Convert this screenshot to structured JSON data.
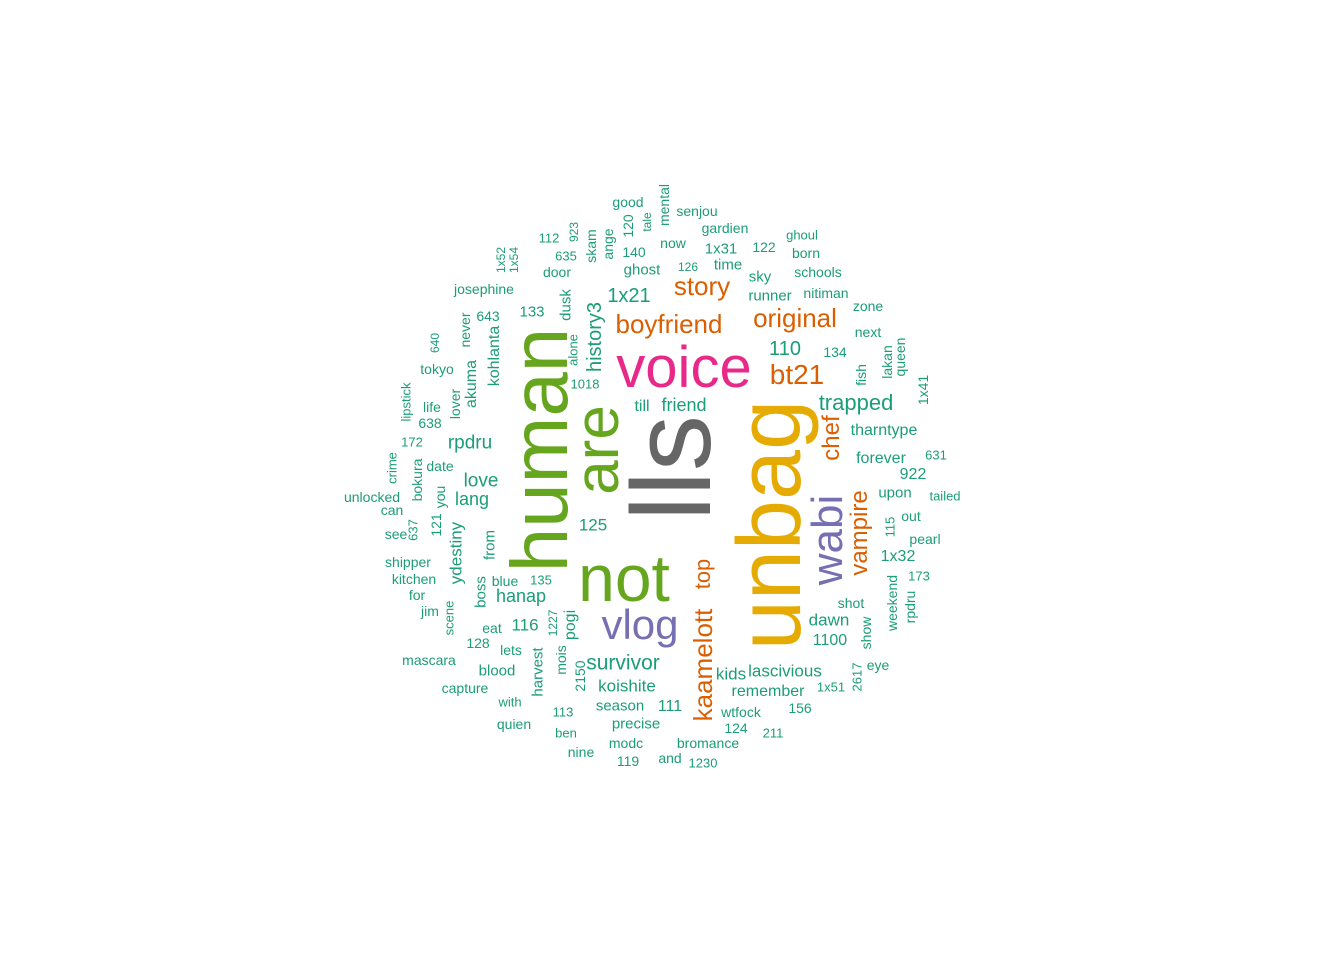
{
  "palette": {
    "gray": "#666666",
    "olive": "#66a61e",
    "gold": "#e6ab02",
    "magenta": "#e7298a",
    "purple": "#7570b3",
    "orange": "#d95f02",
    "teal": "#1b9e77"
  },
  "words": [
    {
      "text": "lls"
    },
    {
      "text": "unbag"
    },
    {
      "text": "human"
    },
    {
      "text": "not"
    },
    {
      "text": "are"
    },
    {
      "text": "voice"
    },
    {
      "text": "vlog"
    },
    {
      "text": "wabi"
    },
    {
      "text": "boyfriend"
    },
    {
      "text": "story"
    },
    {
      "text": "original"
    },
    {
      "text": "bt21"
    },
    {
      "text": "kaamelott"
    },
    {
      "text": "top"
    },
    {
      "text": "vampire"
    },
    {
      "text": "chef"
    },
    {
      "text": "1x21"
    },
    {
      "text": "history3"
    },
    {
      "text": "110"
    },
    {
      "text": "trapped"
    },
    {
      "text": "friend"
    },
    {
      "text": "till"
    },
    {
      "text": "rpdru"
    },
    {
      "text": "love"
    },
    {
      "text": "lang"
    },
    {
      "text": "125"
    },
    {
      "text": "survivor"
    },
    {
      "text": "hanap"
    },
    {
      "text": "116"
    },
    {
      "text": "koishite"
    },
    {
      "text": "kids"
    },
    {
      "text": "lascivious"
    },
    {
      "text": "dawn"
    },
    {
      "text": "1100"
    },
    {
      "text": "forever"
    },
    {
      "text": "tharntype"
    },
    {
      "text": "922"
    },
    {
      "text": "upon"
    },
    {
      "text": "1x32"
    },
    {
      "text": "ydestiny"
    },
    {
      "text": "akuma"
    },
    {
      "text": "kohlanta"
    },
    {
      "text": "boss"
    },
    {
      "text": "from"
    },
    {
      "text": "dusk"
    },
    {
      "text": "133"
    },
    {
      "text": "643"
    },
    {
      "text": "josephine"
    },
    {
      "text": "ghost"
    },
    {
      "text": "runner"
    },
    {
      "text": "sky"
    },
    {
      "text": "time"
    },
    {
      "text": "1x31"
    },
    {
      "text": "now"
    },
    {
      "text": "140"
    },
    {
      "text": "120"
    },
    {
      "text": "ange"
    },
    {
      "text": "skam"
    },
    {
      "text": "good"
    },
    {
      "text": "mental"
    },
    {
      "text": "tale"
    },
    {
      "text": "senjou"
    },
    {
      "text": "gardien"
    },
    {
      "text": "122"
    },
    {
      "text": "ghoul"
    },
    {
      "text": "born"
    },
    {
      "text": "schools"
    },
    {
      "text": "nitiman"
    },
    {
      "text": "zone"
    },
    {
      "text": "next"
    },
    {
      "text": "134"
    },
    {
      "text": "fish"
    },
    {
      "text": "lakan"
    },
    {
      "text": "queen"
    },
    {
      "text": "1x41"
    },
    {
      "text": "631"
    },
    {
      "text": "tailed"
    },
    {
      "text": "out"
    },
    {
      "text": "115"
    },
    {
      "text": "pearl"
    },
    {
      "text": "173"
    },
    {
      "text": "rpdru"
    },
    {
      "text": "weekend"
    },
    {
      "text": "show"
    },
    {
      "text": "shot"
    },
    {
      "text": "eye"
    },
    {
      "text": "2617"
    },
    {
      "text": "1x51"
    },
    {
      "text": "156"
    },
    {
      "text": "211"
    },
    {
      "text": "remember"
    },
    {
      "text": "wtfock"
    },
    {
      "text": "124"
    },
    {
      "text": "bromance"
    },
    {
      "text": "111"
    },
    {
      "text": "precise"
    },
    {
      "text": "season"
    },
    {
      "text": "modc"
    },
    {
      "text": "119"
    },
    {
      "text": "and"
    },
    {
      "text": "1230"
    },
    {
      "text": "pogi"
    },
    {
      "text": "mois"
    },
    {
      "text": "harvest"
    },
    {
      "text": "2150"
    },
    {
      "text": "113"
    },
    {
      "text": "ben"
    },
    {
      "text": "nine"
    },
    {
      "text": "135"
    },
    {
      "text": "1227"
    },
    {
      "text": "blue"
    },
    {
      "text": "eat"
    },
    {
      "text": "lets"
    },
    {
      "text": "blood"
    },
    {
      "text": "with"
    },
    {
      "text": "quien"
    },
    {
      "text": "capture"
    },
    {
      "text": "128"
    },
    {
      "text": "mascara"
    },
    {
      "text": "scene"
    },
    {
      "text": "jim"
    },
    {
      "text": "for"
    },
    {
      "text": "kitchen"
    },
    {
      "text": "shipper"
    },
    {
      "text": "see"
    },
    {
      "text": "637"
    },
    {
      "text": "can"
    },
    {
      "text": "unlocked"
    },
    {
      "text": "crime"
    },
    {
      "text": "bokura"
    },
    {
      "text": "121"
    },
    {
      "text": "you"
    },
    {
      "text": "date"
    },
    {
      "text": "172"
    },
    {
      "text": "638"
    },
    {
      "text": "life"
    },
    {
      "text": "lipstick"
    },
    {
      "text": "lover"
    },
    {
      "text": "tokyo"
    },
    {
      "text": "640"
    },
    {
      "text": "never"
    },
    {
      "text": "1x52"
    },
    {
      "text": "1x54"
    },
    {
      "text": "112"
    },
    {
      "text": "635"
    },
    {
      "text": "923"
    },
    {
      "text": "door"
    },
    {
      "text": "alone"
    },
    {
      "text": "1018"
    },
    {
      "text": "126"
    }
  ]
}
